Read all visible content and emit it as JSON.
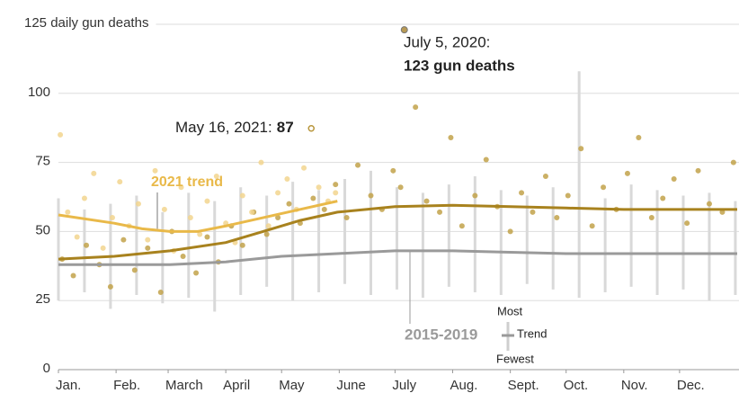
{
  "chart_data": {
    "type": "line",
    "xlim": [
      0,
      365
    ],
    "xticks": [
      {
        "value": 0,
        "label": "Jan."
      },
      {
        "value": 31,
        "label": "Feb."
      },
      {
        "value": 59,
        "label": "March"
      },
      {
        "value": 90,
        "label": "April"
      },
      {
        "value": 120,
        "label": "May"
      },
      {
        "value": 151,
        "label": "June"
      },
      {
        "value": 181,
        "label": "July"
      },
      {
        "value": 212,
        "label": "Aug."
      },
      {
        "value": 243,
        "label": "Sept."
      },
      {
        "value": 273,
        "label": "Oct."
      },
      {
        "value": 304,
        "label": "Nov."
      },
      {
        "value": 334,
        "label": "Dec."
      }
    ],
    "ylim": [
      0,
      125
    ],
    "yticks": [
      0,
      25,
      50,
      75,
      100,
      {
        "value": 125,
        "label": "125 daily gun deaths"
      }
    ],
    "grid": true,
    "range": {
      "color": "#d9d9d9",
      "x": [
        0,
        14,
        28,
        42,
        56,
        70,
        84,
        98,
        112,
        126,
        140,
        154,
        168,
        182,
        196,
        210,
        224,
        238,
        252,
        266,
        280,
        294,
        308,
        322,
        336,
        350,
        364
      ],
      "low": [
        25,
        28,
        22,
        27,
        24,
        26,
        21,
        27,
        30,
        25,
        28,
        31,
        27,
        29,
        26,
        30,
        28,
        27,
        31,
        29,
        26,
        28,
        30,
        27,
        29,
        25,
        27
      ],
      "high": [
        62,
        58,
        60,
        63,
        57,
        64,
        61,
        66,
        63,
        68,
        65,
        69,
        72,
        66,
        64,
        67,
        70,
        65,
        63,
        66,
        108,
        62,
        67,
        65,
        63,
        64,
        61
      ]
    },
    "dots": [
      {
        "color": "#c2a24a",
        "x": [
          2,
          8,
          15,
          22,
          28,
          35,
          41,
          48,
          55,
          61,
          67,
          74,
          80,
          86,
          93,
          99,
          105,
          112,
          118,
          124,
          130,
          137,
          143,
          149,
          155,
          161,
          168,
          174,
          180,
          184,
          192,
          198,
          205,
          211,
          217,
          224,
          230,
          236,
          243,
          249,
          255,
          262,
          268,
          274,
          281,
          287,
          293,
          300,
          306,
          312,
          319,
          325,
          331,
          338,
          344,
          350,
          357,
          363
        ],
        "values": [
          40,
          34,
          45,
          38,
          30,
          47,
          36,
          44,
          28,
          50,
          41,
          35,
          48,
          39,
          52,
          45,
          57,
          49,
          55,
          60,
          53,
          62,
          58,
          67,
          55,
          74,
          63,
          58,
          72,
          66,
          95,
          61,
          57,
          84,
          52,
          63,
          76,
          59,
          50,
          64,
          57,
          70,
          55,
          63,
          80,
          52,
          66,
          58,
          71,
          84,
          55,
          62,
          69,
          53,
          72,
          60,
          57,
          75
        ]
      },
      {
        "color": "#f2d58e",
        "x": [
          1,
          5,
          10,
          14,
          19,
          24,
          29,
          33,
          38,
          43,
          48,
          52,
          57,
          62,
          66,
          71,
          76,
          80,
          85,
          90,
          95,
          99,
          104,
          109,
          113,
          118,
          123,
          128,
          132,
          140,
          145,
          149
        ],
        "values": [
          85,
          57,
          48,
          62,
          71,
          44,
          55,
          68,
          52,
          60,
          47,
          72,
          58,
          43,
          66,
          55,
          49,
          61,
          70,
          53,
          46,
          63,
          57,
          75,
          52,
          64,
          69,
          58,
          73,
          66,
          61,
          64
        ]
      }
    ],
    "series": [
      {
        "name": "2015-2019",
        "color": "#9a9a9a",
        "x": [
          0,
          60,
          90,
          120,
          150,
          181,
          212,
          243,
          273,
          365
        ],
        "values": [
          38,
          38,
          39,
          41,
          42,
          43,
          43,
          42.5,
          42,
          42
        ]
      },
      {
        "color": "#a8821e",
        "x": [
          0,
          30,
          60,
          90,
          110,
          130,
          150,
          181,
          212,
          243,
          273,
          304,
          334,
          365
        ],
        "values": [
          40,
          41,
          43,
          46,
          50,
          54,
          57,
          59,
          59.5,
          59,
          58.5,
          58,
          58,
          58
        ]
      },
      {
        "name": "2021 trend",
        "color": "#e9b949",
        "x": [
          0,
          30,
          45,
          60,
          75,
          90,
          110,
          130,
          150
        ],
        "values": [
          56,
          53,
          51,
          50,
          50,
          52,
          55,
          58,
          61
        ]
      }
    ],
    "highlights": [
      {
        "label": "July 5, 2020:",
        "detail": "123 gun deaths",
        "x": 186,
        "value": 123,
        "color": "#b89a55"
      },
      {
        "label": "May 16, 2021:",
        "x": 135,
        "value": 87,
        "color": "#e9b949"
      }
    ],
    "legend": {
      "top": "Most",
      "middle": "Trend",
      "bottom": "Fewest"
    }
  }
}
